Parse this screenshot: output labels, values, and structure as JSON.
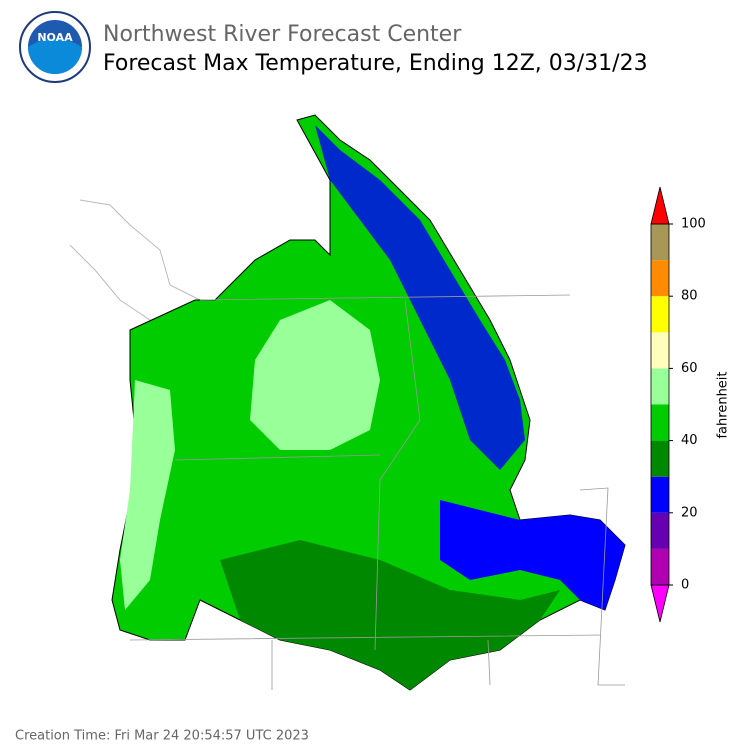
{
  "header": {
    "logo_text": "NOAA",
    "organization": "Northwest River Forecast Center",
    "title": "Forecast Max Temperature, Ending 12Z, 03/31/23"
  },
  "colorbar": {
    "label": "fahrenheit",
    "lim": [
      0,
      100
    ],
    "bounds": [
      0,
      10,
      20,
      30,
      40,
      50,
      60,
      70,
      80,
      90,
      100
    ],
    "colors": [
      "#b000b0",
      "#6600b0",
      "#0000ff",
      "#008800",
      "#00cc00",
      "#99ff99",
      "#ffffbb",
      "#ffff00",
      "#ff8c00",
      "#a89858"
    ],
    "under_color": "#ff00ff",
    "over_color": "#ff0000",
    "ticks": [
      0,
      20,
      40,
      60,
      80,
      100
    ]
  },
  "footer": {
    "creation_time": "Creation Time: Fri Mar 24 20:54:57 UTC 2023"
  }
}
